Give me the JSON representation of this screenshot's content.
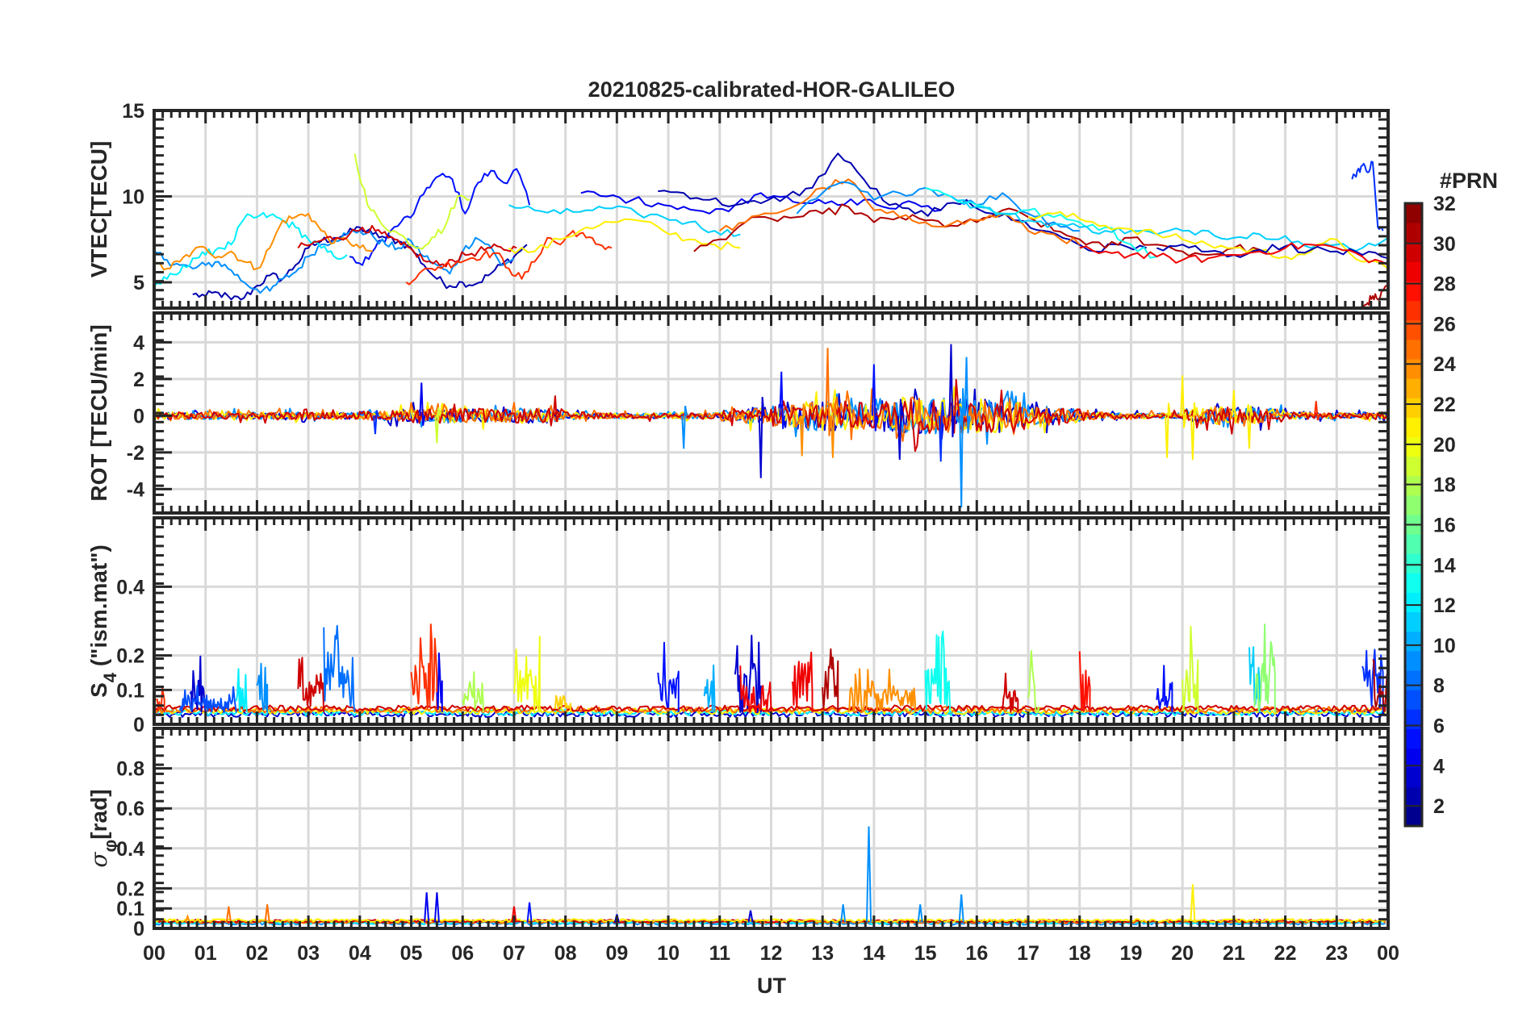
{
  "title": "20210825-calibrated-HOR-GALILEO",
  "xlabel": "UT",
  "xticks": [
    "00",
    "01",
    "02",
    "03",
    "04",
    "05",
    "06",
    "07",
    "08",
    "09",
    "10",
    "11",
    "12",
    "13",
    "14",
    "15",
    "16",
    "17",
    "18",
    "19",
    "20",
    "21",
    "22",
    "23",
    "00"
  ],
  "colorbar": {
    "title": "#PRN",
    "range": [
      1,
      32
    ],
    "labels": [
      "2",
      "4",
      "6",
      "8",
      "10",
      "12",
      "14",
      "16",
      "18",
      "20",
      "22",
      "24",
      "26",
      "28",
      "30",
      "32"
    ],
    "colormap": "jet"
  },
  "chart_data": [
    {
      "type": "line",
      "name": "vtec",
      "ylabel": "VTEC[TECU]",
      "ylim": [
        3.5,
        15
      ],
      "yticks": [
        "5",
        "10",
        "15"
      ],
      "xlim": [
        0,
        24
      ],
      "series": [
        {
          "prn": 2,
          "t0": 0.75,
          "dt": 0.25,
          "values": [
            4.3,
            4.2,
            4.4,
            4.0,
            4.1,
            4.8,
            5.4,
            5.2,
            6.0,
            7.0,
            7.4,
            7.6,
            7.8,
            8.2,
            7.8,
            7.6,
            7.4,
            7.0,
            6.0,
            5.2,
            4.8,
            5.0,
            4.9,
            5.4,
            6.0,
            6.5,
            7.2
          ]
        },
        {
          "prn": 5,
          "t0": 3.8,
          "dt": 0.25,
          "values": [
            6.5,
            6.0,
            7.0,
            7.8,
            8.5,
            9.0,
            10.5,
            11.2,
            11.0,
            9.0,
            10.8,
            11.5,
            10.8,
            11.6,
            9.5
          ]
        },
        {
          "prn": 9,
          "t0": 0.0,
          "dt": 0.25,
          "values": [
            6.8,
            6.3,
            6.0,
            5.8,
            6.0,
            6.2,
            5.7,
            5.0,
            4.6,
            4.5,
            5.2,
            5.6,
            6.5,
            7.2,
            7.5,
            7.8,
            8.0,
            7.7,
            7.2,
            7.0,
            7.4,
            6.5,
            6.0,
            5.5,
            6.8,
            7.6,
            7.2,
            6.0,
            6.4
          ]
        },
        {
          "prn": 12,
          "t0": 0.0,
          "dt": 0.25,
          "values": [
            4.8,
            5.2,
            5.6,
            6.4,
            6.6,
            7.0,
            7.2,
            8.7,
            8.8,
            8.9,
            8.6,
            8.2,
            7.5,
            7.0,
            6.5,
            6.6
          ]
        },
        {
          "prn": 24,
          "t0": 0.0,
          "dt": 0.25,
          "values": [
            6.0,
            5.8,
            6.2,
            6.8,
            7.0,
            6.5,
            6.8,
            6.2,
            5.8,
            7.0,
            8.6,
            8.8,
            9.0,
            8.0,
            7.3,
            7.5,
            7.0,
            6.8
          ]
        },
        {
          "prn": 30,
          "t0": 2.8,
          "dt": 0.25,
          "values": [
            7.0,
            7.2,
            7.5,
            7.6,
            7.8,
            8.2,
            8.0,
            7.6,
            7.2,
            6.8,
            6.2,
            6.0,
            6.3,
            6.6,
            6.8,
            7.0,
            6.9,
            7.0
          ]
        },
        {
          "prn": 19,
          "t0": 3.9,
          "dt": 0.25,
          "values": [
            12.5,
            9.5,
            8.5,
            8.0,
            7.5,
            7.0,
            7.6,
            8.2,
            10.0,
            9.8
          ]
        },
        {
          "prn": 27,
          "t0": 4.9,
          "dt": 0.25,
          "values": [
            5.0,
            5.5,
            5.8,
            6.0,
            6.2,
            6.4,
            6.6,
            6.7,
            5.8,
            5.2,
            6.2,
            7.6,
            7.2,
            8.0,
            7.6,
            7.2,
            7.0
          ]
        },
        {
          "prn": 11,
          "t0": 6.9,
          "dt": 0.5,
          "values": [
            9.5,
            9.2,
            9.0,
            9.2,
            9.3,
            9.0,
            8.8,
            8.5,
            8.0,
            7.8
          ]
        },
        {
          "prn": 21,
          "t0": 6.9,
          "dt": 0.5,
          "values": [
            7.0,
            6.8,
            7.5,
            8.2,
            8.5,
            8.6,
            8.0,
            7.5,
            7.2,
            7.0
          ]
        },
        {
          "prn": 4,
          "t0": 8.3,
          "dt": 0.5,
          "values": [
            10.2,
            10.0,
            9.8,
            9.6,
            9.4,
            9.0,
            9.5,
            10.2,
            10.0,
            9.6,
            9.5,
            9.8,
            9.3,
            9.6,
            9.2
          ]
        },
        {
          "prn": 2,
          "t0": 9.8,
          "dt": 0.5,
          "values": [
            10.3,
            10.2,
            9.8,
            9.5,
            9.6,
            10.0,
            10.5,
            12.5,
            11.0,
            9.5,
            9.0,
            9.2,
            9.8,
            9.0,
            8.6,
            8.0,
            7.5,
            6.8,
            7.2,
            7.0
          ]
        },
        {
          "prn": 31,
          "t0": 10.5,
          "dt": 0.5,
          "values": [
            6.8,
            7.5,
            8.5,
            8.7,
            8.8,
            9.0,
            9.4,
            8.5,
            8.8,
            8.6,
            8.3,
            8.5,
            9.2,
            8.8,
            8.0,
            7.5,
            7.0,
            7.6,
            7.2,
            6.8,
            6.6,
            7.0,
            6.9
          ]
        },
        {
          "prn": 25,
          "t0": 11.0,
          "dt": 0.5,
          "values": [
            8.0,
            8.5,
            9.0,
            9.5,
            10.5,
            11.0,
            9.2,
            8.8,
            8.5,
            8.4,
            8.6,
            9.0,
            8.0,
            7.8,
            7.2
          ]
        },
        {
          "prn": 9,
          "t0": 12.5,
          "dt": 0.5,
          "values": [
            9.0,
            10.2,
            10.8,
            9.8,
            10.2,
            10.5,
            10.0,
            9.5,
            10.2,
            9.0,
            8.5,
            8.0
          ]
        },
        {
          "prn": 13,
          "t0": 15.0,
          "dt": 0.5,
          "values": [
            10.5,
            10.0,
            9.5,
            9.0,
            9.2,
            8.8,
            8.5,
            8.2,
            7.2,
            6.5
          ]
        },
        {
          "prn": 11,
          "t0": 15.5,
          "dt": 0.5,
          "values": [
            10.0,
            9.4,
            9.0,
            8.6,
            8.4,
            8.2,
            8.0,
            8.0,
            7.8,
            8.0,
            8.0,
            7.6,
            7.8,
            7.7,
            7.0,
            7.2,
            7.0,
            7.6,
            7.2,
            6.8,
            6.5
          ]
        },
        {
          "prn": 21,
          "t0": 17.0,
          "dt": 0.5,
          "values": [
            8.8,
            9.0,
            8.7,
            8.3,
            8.1,
            7.8,
            7.5,
            7.2,
            7.0,
            6.8,
            6.5,
            6.8,
            7.5,
            6.2,
            5.8,
            6.0,
            6.5,
            5.5,
            6.0,
            6.5,
            6.6,
            6.5,
            6.0,
            5.8
          ]
        },
        {
          "prn": 2,
          "t0": 19.5,
          "dt": 0.5,
          "values": [
            7.0,
            7.2,
            6.8,
            6.6,
            6.9,
            7.1,
            6.9,
            6.8,
            6.6,
            6.4,
            7.0,
            7.2,
            6.8,
            7.4,
            7.8,
            7.6,
            7.0,
            7.5
          ]
        },
        {
          "prn": 29,
          "t0": 18.0,
          "dt": 0.5,
          "values": [
            7.0,
            6.8,
            6.6,
            6.5,
            6.3,
            6.4,
            6.6,
            6.8,
            7.0,
            7.2,
            7.0,
            6.5,
            6.0,
            5.8,
            5.6,
            5.7
          ]
        },
        {
          "prn": 6,
          "t0": 23.3,
          "dt": 0.1,
          "values": [
            11.0,
            11.5,
            11.8,
            11.4,
            12.0,
            8.2,
            8.0
          ]
        },
        {
          "prn": 31,
          "t0": 23.5,
          "dt": 0.1,
          "values": [
            3.5,
            3.8,
            4.2,
            4.0,
            4.5,
            5.0
          ]
        }
      ]
    },
    {
      "type": "line",
      "name": "rot",
      "ylabel": "ROT [TECU/min]",
      "ylim": [
        -5.3,
        5.6
      ],
      "yticks": [
        "-4",
        "-2",
        "0",
        "2",
        "4"
      ],
      "xlim": [
        0,
        24
      ],
      "noise_prns": [
        3,
        9,
        21,
        25,
        30
      ],
      "noise_envelope_halfhour": [
        0.4,
        0.4,
        0.4,
        0.4,
        0.4,
        0.4,
        0.35,
        0.35,
        0.5,
        0.6,
        0.8,
        0.8,
        0.8,
        0.7,
        0.8,
        0.8,
        0.4,
        0.3,
        0.3,
        0.3,
        0.3,
        0.3,
        0.6,
        0.9,
        1.3,
        1.6,
        1.6,
        1.5,
        1.8,
        2.0,
        2.0,
        2.0,
        2.0,
        1.5,
        1.0,
        0.8,
        0.4,
        0.3,
        0.3,
        0.3,
        0.8,
        1.0,
        0.9,
        0.8,
        0.4,
        0.3,
        0.3,
        0.4
      ],
      "spikes": [
        [
          4.3,
          -1.0,
          6
        ],
        [
          5.2,
          1.8,
          4
        ],
        [
          5.5,
          -1.5,
          19
        ],
        [
          7.8,
          1.1,
          30
        ],
        [
          10.3,
          -1.8,
          9
        ],
        [
          11.8,
          -3.4,
          3
        ],
        [
          12.2,
          2.4,
          5
        ],
        [
          12.6,
          -2.2,
          24
        ],
        [
          13.1,
          3.7,
          25
        ],
        [
          13.2,
          -2.3,
          24
        ],
        [
          14.0,
          2.8,
          5
        ],
        [
          14.5,
          -2.4,
          3
        ],
        [
          15.3,
          -2.5,
          6
        ],
        [
          15.5,
          3.9,
          3
        ],
        [
          15.7,
          -5.0,
          9
        ],
        [
          15.8,
          3.2,
          9
        ],
        [
          19.7,
          -2.3,
          21
        ],
        [
          20.0,
          2.2,
          21
        ],
        [
          20.2,
          -2.4,
          21
        ],
        [
          21.0,
          1.4,
          21
        ],
        [
          21.3,
          -1.8,
          21
        ],
        [
          22.6,
          0.8,
          27
        ]
      ]
    },
    {
      "type": "line",
      "name": "s4",
      "ylabel_main": "S",
      "ylabel_sub": "4",
      "ylabel_rest": " (\"ism.mat\")",
      "ylim": [
        0,
        0.6
      ],
      "yticks": [
        "0",
        "0.1",
        "0.2",
        "0.4"
      ],
      "xlim": [
        0,
        24
      ],
      "baseline": 0.035,
      "baseline_prns": [
        3,
        12,
        21,
        25,
        30
      ],
      "bursts": [
        [
          0.0,
          0.2,
          0.14,
          27
        ],
        [
          0.7,
          1.0,
          0.22,
          3
        ],
        [
          0.5,
          1.6,
          0.12,
          7
        ],
        [
          1.6,
          1.8,
          0.25,
          12
        ],
        [
          2.0,
          2.2,
          0.2,
          9
        ],
        [
          2.8,
          3.3,
          0.22,
          30
        ],
        [
          3.3,
          3.9,
          0.3,
          8
        ],
        [
          5.0,
          5.5,
          0.33,
          27
        ],
        [
          5.5,
          5.6,
          0.26,
          4
        ],
        [
          6.0,
          6.4,
          0.17,
          18
        ],
        [
          7.0,
          7.5,
          0.27,
          20
        ],
        [
          7.8,
          8.1,
          0.1,
          22
        ],
        [
          9.8,
          10.2,
          0.24,
          5
        ],
        [
          10.7,
          10.9,
          0.2,
          10
        ],
        [
          11.3,
          11.8,
          0.32,
          3
        ],
        [
          11.4,
          12.0,
          0.2,
          29
        ],
        [
          12.4,
          12.8,
          0.3,
          29
        ],
        [
          13.0,
          13.3,
          0.34,
          31
        ],
        [
          13.5,
          14.8,
          0.17,
          24
        ],
        [
          15.0,
          15.5,
          0.28,
          13
        ],
        [
          16.5,
          16.8,
          0.15,
          30
        ],
        [
          17.0,
          17.2,
          0.3,
          18
        ],
        [
          18.0,
          18.2,
          0.27,
          28
        ],
        [
          19.5,
          19.8,
          0.2,
          5
        ],
        [
          20.0,
          20.3,
          0.29,
          19
        ],
        [
          21.3,
          21.5,
          0.32,
          11
        ],
        [
          21.4,
          21.8,
          0.3,
          17
        ],
        [
          23.5,
          23.9,
          0.3,
          6
        ],
        [
          23.7,
          24.0,
          0.2,
          31
        ]
      ]
    },
    {
      "type": "line",
      "name": "sigma-phi",
      "ylabel_main": "σ",
      "ylabel_sub": "φ",
      "ylabel_rest": "[rad]",
      "ylim": [
        0,
        1
      ],
      "yticks": [
        "0",
        "0.1",
        "0.2",
        "0.4",
        "0.6",
        "0.8"
      ],
      "xlim": [
        0,
        24
      ],
      "baseline": 0.03,
      "baseline_prns": [
        9,
        12,
        25,
        30,
        21
      ],
      "spikes": [
        [
          0.65,
          0.06,
          24
        ],
        [
          1.45,
          0.11,
          25
        ],
        [
          2.2,
          0.12,
          25
        ],
        [
          5.3,
          0.18,
          4
        ],
        [
          5.5,
          0.18,
          4
        ],
        [
          7.0,
          0.11,
          29
        ],
        [
          7.3,
          0.13,
          5
        ],
        [
          9.0,
          0.07,
          3
        ],
        [
          11.6,
          0.09,
          3
        ],
        [
          13.4,
          0.12,
          9
        ],
        [
          13.9,
          0.51,
          9
        ],
        [
          14.9,
          0.12,
          9
        ],
        [
          15.7,
          0.17,
          9
        ],
        [
          20.2,
          0.22,
          21
        ]
      ]
    }
  ]
}
